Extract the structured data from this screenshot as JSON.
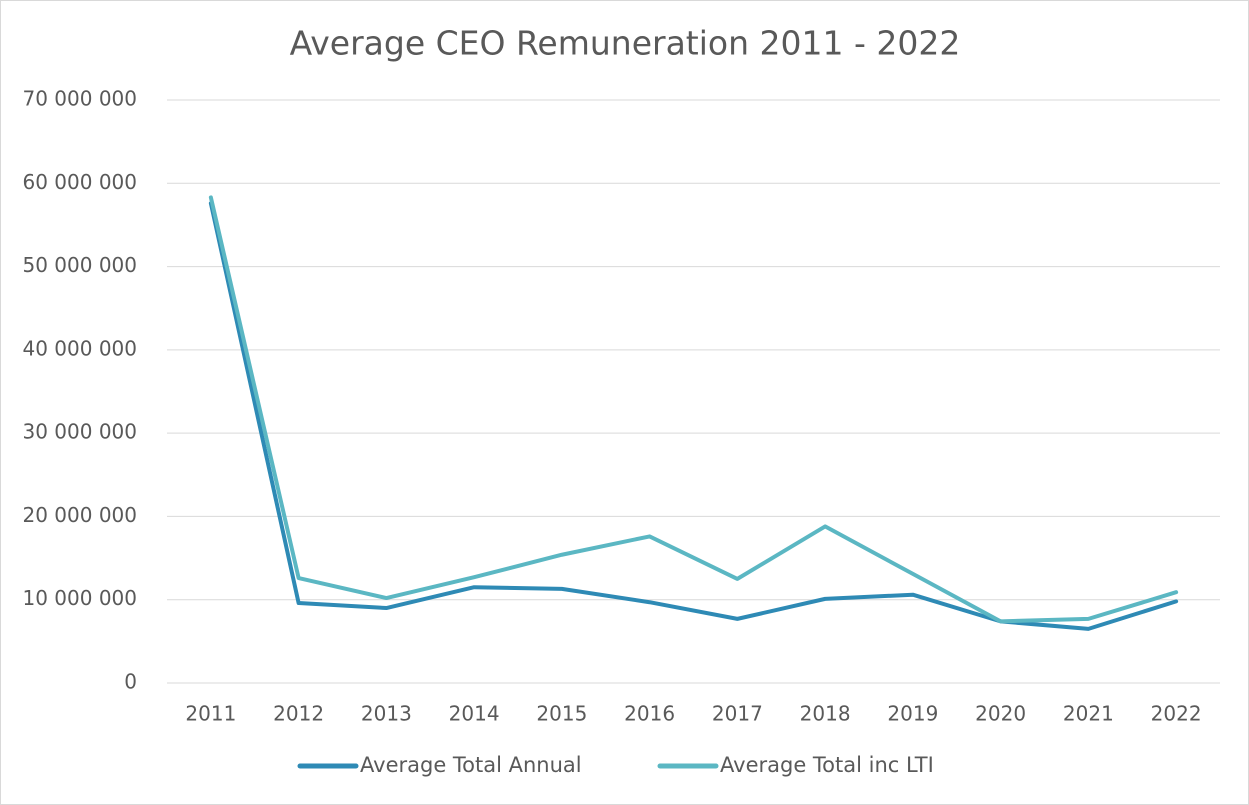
{
  "chart_data": {
    "type": "line",
    "title": "Average CEO Remuneration 2011 - 2022",
    "categories": [
      "2011",
      "2012",
      "2013",
      "2014",
      "2015",
      "2016",
      "2017",
      "2018",
      "2019",
      "2020",
      "2021",
      "2022"
    ],
    "series": [
      {
        "name": "Average Total Annual",
        "color": "#2e8ab5",
        "values": [
          57600000,
          9600000,
          9000000,
          11500000,
          11300000,
          9700000,
          7700000,
          10100000,
          10600000,
          7400000,
          6500000,
          9800000
        ]
      },
      {
        "name": "Average Total inc LTI",
        "color": "#5bb7c3",
        "values": [
          58300000,
          12600000,
          10200000,
          12700000,
          15400000,
          17600000,
          12500000,
          18800000,
          13100000,
          7400000,
          7700000,
          10900000
        ]
      }
    ],
    "ylim": [
      0,
      70000000
    ],
    "yticks": [
      0,
      {
        "value": 10000000,
        "label": "10 000 000"
      },
      {
        "value": 20000000,
        "label": "20 000 000"
      },
      {
        "value": 30000000,
        "label": "30 000 000"
      },
      {
        "value": 40000000,
        "label": "40 000 000"
      },
      {
        "value": 50000000,
        "label": "50 000 000"
      },
      {
        "value": 60000000,
        "label": "60 000 000"
      },
      {
        "value": 70000000,
        "label": "70 000 000"
      }
    ],
    "grid": true,
    "legend": "bottom"
  }
}
